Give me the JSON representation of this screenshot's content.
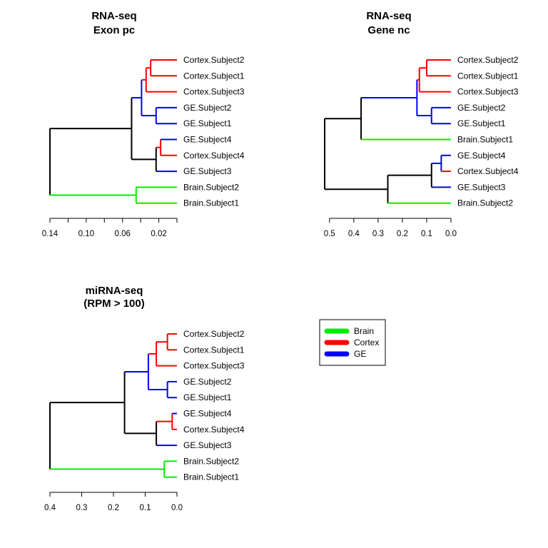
{
  "colors": {
    "Brain": "#00ee00",
    "Cortex": "#ff0000",
    "GE": "#0000ff",
    "link": "#000000"
  },
  "legend": [
    {
      "label": "Brain",
      "group": "Brain"
    },
    {
      "label": "Cortex",
      "group": "Cortex"
    },
    {
      "label": "GE",
      "group": "GE"
    }
  ],
  "dendrograms": [
    {
      "id": "exon-pc",
      "title_lines": [
        "RNA-seq",
        "Exon pc"
      ],
      "axis_range": [
        0.14,
        0.0
      ],
      "ticks": [
        0.14,
        0.12,
        0.1,
        0.08,
        0.06,
        0.04,
        0.02,
        0.0
      ],
      "tick_labels": [
        {
          "value": 0.14,
          "label": "0.14"
        },
        {
          "value": 0.1,
          "label": "0.10"
        },
        {
          "value": 0.06,
          "label": "0.06"
        },
        {
          "value": 0.02,
          "label": "0.02"
        }
      ],
      "leaves": [
        {
          "label": "Cortex.Subject2",
          "group": "Cortex"
        },
        {
          "label": "Cortex.Subject1",
          "group": "Cortex"
        },
        {
          "label": "Cortex.Subject3",
          "group": "Cortex"
        },
        {
          "label": "GE.Subject2",
          "group": "GE"
        },
        {
          "label": "GE.Subject1",
          "group": "GE"
        },
        {
          "label": "GE.Subject4",
          "group": "GE"
        },
        {
          "label": "Cortex.Subject4",
          "group": "Cortex"
        },
        {
          "label": "GE.Subject3",
          "group": "GE"
        },
        {
          "label": "Brain.Subject2",
          "group": "Brain"
        },
        {
          "label": "Brain.Subject1",
          "group": "Brain"
        }
      ],
      "tree": {
        "h": 0.14,
        "color": "link",
        "children": [
          {
            "h": 0.05,
            "color": "link",
            "children": [
              {
                "h": 0.039,
                "color": "GE",
                "children": [
                  {
                    "h": 0.038,
                    "color": "Cortex",
                    "children": [
                      {
                        "h": 0.034,
                        "color": "Cortex",
                        "children": [
                          {
                            "h": 0.029,
                            "color": "Cortex",
                            "children": [
                              {
                                "leaf": 0
                              },
                              {
                                "leaf": 1
                              }
                            ]
                          },
                          {
                            "leaf": 2
                          }
                        ]
                      },
                      {
                        "leaf": 2,
                        "skip": true
                      }
                    ]
                  },
                  {
                    "h": 0.023,
                    "color": "GE",
                    "children": [
                      {
                        "leaf": 3
                      },
                      {
                        "leaf": 4
                      }
                    ]
                  }
                ]
              },
              {
                "h": 0.023,
                "color": "link",
                "children": [
                  {
                    "h": 0.018,
                    "color": "Cortex",
                    "children": [
                      {
                        "h": 0.004,
                        "color": "GE",
                        "children": [
                          {
                            "leaf": 5
                          },
                          {
                            "leaf": 5,
                            "skip": true
                          }
                        ]
                      },
                      {
                        "leaf": 6
                      }
                    ]
                  },
                  {
                    "leaf": 7
                  }
                ]
              }
            ]
          },
          {
            "h": 0.045,
            "color": "Brain",
            "children": [
              {
                "leaf": 8
              },
              {
                "leaf": 9
              }
            ]
          }
        ]
      }
    },
    {
      "id": "gene-nc",
      "title_lines": [
        "RNA-seq",
        "Gene nc"
      ],
      "axis_range": [
        0.52,
        0.0
      ],
      "ticks": [
        0.5,
        0.4,
        0.3,
        0.2,
        0.1,
        0.0
      ],
      "tick_labels": [
        {
          "value": 0.5,
          "label": "0.5"
        },
        {
          "value": 0.4,
          "label": "0.4"
        },
        {
          "value": 0.3,
          "label": "0.3"
        },
        {
          "value": 0.2,
          "label": "0.2"
        },
        {
          "value": 0.1,
          "label": "0.1"
        },
        {
          "value": 0.0,
          "label": "0.0"
        }
      ],
      "leaves": [
        {
          "label": "Cortex.Subject2",
          "group": "Cortex"
        },
        {
          "label": "Cortex.Subject1",
          "group": "Cortex"
        },
        {
          "label": "Cortex.Subject3",
          "group": "Cortex"
        },
        {
          "label": "GE.Subject2",
          "group": "GE"
        },
        {
          "label": "GE.Subject1",
          "group": "GE"
        },
        {
          "label": "Brain.Subject1",
          "group": "Brain"
        },
        {
          "label": "GE.Subject4",
          "group": "GE"
        },
        {
          "label": "Cortex.Subject4",
          "group": "Cortex"
        },
        {
          "label": "GE.Subject3",
          "group": "GE"
        },
        {
          "label": "Brain.Subject2",
          "group": "Brain"
        }
      ],
      "tree": {
        "h": 0.52,
        "color": "link",
        "children": [
          {
            "h": 0.37,
            "color": "link",
            "children": [
              {
                "h": 0.14,
                "color": "GE",
                "children": [
                  {
                    "h": 0.13,
                    "color": "Cortex",
                    "children": [
                      {
                        "h": 0.1,
                        "color": "Cortex",
                        "children": [
                          {
                            "leaf": 0
                          },
                          {
                            "leaf": 1
                          }
                        ]
                      },
                      {
                        "leaf": 2
                      }
                    ]
                  },
                  {
                    "h": 0.08,
                    "color": "GE",
                    "children": [
                      {
                        "leaf": 3
                      },
                      {
                        "leaf": 4
                      }
                    ]
                  }
                ]
              },
              {
                "leaf": 5
              }
            ]
          },
          {
            "h": 0.26,
            "color": "link",
            "children": [
              {
                "h": 0.08,
                "color": "link",
                "children": [
                  {
                    "h": 0.04,
                    "color": "GE",
                    "children": [
                      {
                        "leaf": 6
                      },
                      {
                        "leaf": 7
                      }
                    ]
                  },
                  {
                    "leaf": 8
                  }
                ]
              },
              {
                "leaf": 9
              }
            ]
          }
        ]
      }
    },
    {
      "id": "mirna-seq",
      "title_lines": [
        "miRNA-seq",
        "(RPM > 100)"
      ],
      "axis_range": [
        0.4,
        0.0
      ],
      "ticks": [
        0.4,
        0.3,
        0.2,
        0.1,
        0.0
      ],
      "tick_labels": [
        {
          "value": 0.4,
          "label": "0.4"
        },
        {
          "value": 0.3,
          "label": "0.3"
        },
        {
          "value": 0.2,
          "label": "0.2"
        },
        {
          "value": 0.1,
          "label": "0.1"
        },
        {
          "value": 0.0,
          "label": "0.0"
        }
      ],
      "leaves": [
        {
          "label": "Cortex.Subject2",
          "group": "Cortex"
        },
        {
          "label": "Cortex.Subject1",
          "group": "Cortex"
        },
        {
          "label": "Cortex.Subject3",
          "group": "Cortex"
        },
        {
          "label": "GE.Subject2",
          "group": "GE"
        },
        {
          "label": "GE.Subject1",
          "group": "GE"
        },
        {
          "label": "GE.Subject4",
          "group": "GE"
        },
        {
          "label": "Cortex.Subject4",
          "group": "Cortex"
        },
        {
          "label": "GE.Subject3",
          "group": "GE"
        },
        {
          "label": "Brain.Subject2",
          "group": "Brain"
        },
        {
          "label": "Brain.Subject1",
          "group": "Brain"
        }
      ],
      "tree": {
        "h": 0.4,
        "color": "link",
        "children": [
          {
            "h": 0.165,
            "color": "link",
            "children": [
              {
                "h": 0.09,
                "color": "GE",
                "children": [
                  {
                    "h": 0.065,
                    "color": "Cortex",
                    "children": [
                      {
                        "h": 0.03,
                        "color": "Cortex",
                        "children": [
                          {
                            "leaf": 0
                          },
                          {
                            "leaf": 1
                          }
                        ]
                      },
                      {
                        "leaf": 2
                      }
                    ]
                  },
                  {
                    "h": 0.03,
                    "color": "GE",
                    "children": [
                      {
                        "leaf": 3
                      },
                      {
                        "leaf": 4
                      }
                    ]
                  }
                ]
              },
              {
                "h": 0.065,
                "color": "link",
                "children": [
                  {
                    "h": 0.015,
                    "color": "Cortex",
                    "children": [
                      {
                        "leaf": 5
                      },
                      {
                        "leaf": 6
                      }
                    ]
                  },
                  {
                    "leaf": 7
                  }
                ]
              }
            ]
          },
          {
            "h": 0.04,
            "color": "Brain",
            "children": [
              {
                "leaf": 8
              },
              {
                "leaf": 9
              }
            ]
          }
        ]
      }
    }
  ]
}
